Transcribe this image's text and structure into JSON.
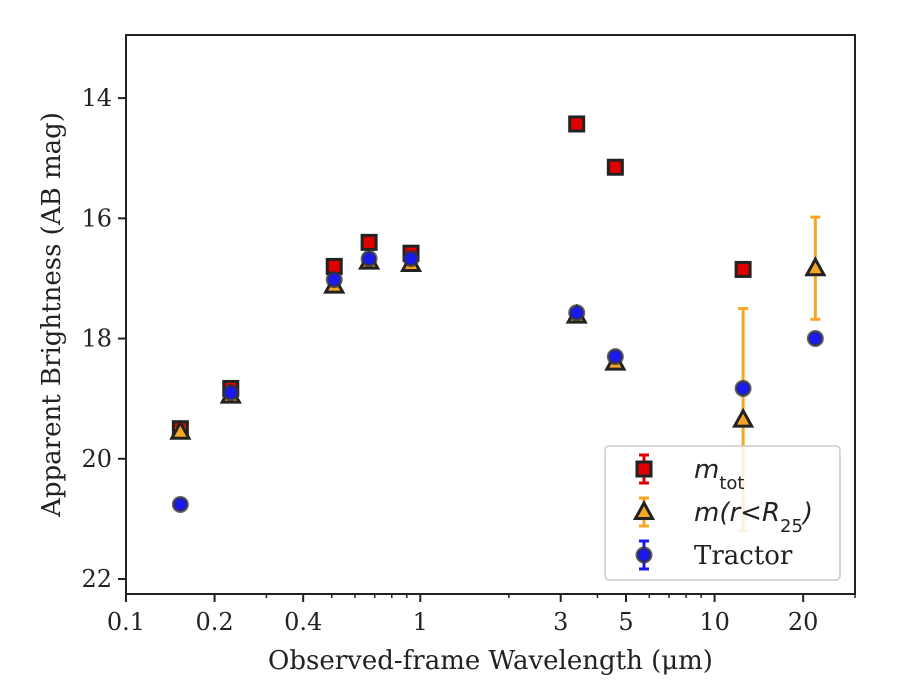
{
  "chart_data": {
    "type": "scatter",
    "xlabel": "Observed-frame Wavelength (μm)",
    "ylabel": "Apparent Brightness (AB mag)",
    "x_scale": "log",
    "xlim": [
      0.1,
      30
    ],
    "ylim": [
      22.25,
      12.95
    ],
    "y_inverted": true,
    "x_ticks": [
      0.1,
      0.2,
      0.4,
      1,
      3,
      5,
      10,
      20
    ],
    "x_tick_labels": [
      "0.1",
      "0.2",
      "0.4",
      "1",
      "3",
      "5",
      "10",
      "20"
    ],
    "y_ticks": [
      14,
      16,
      18,
      20,
      22
    ],
    "y_tick_labels": [
      "14",
      "16",
      "18",
      "20",
      "22"
    ],
    "grid": false,
    "legend_position": "bottom-right",
    "series": [
      {
        "name": "m_tot",
        "marker": "square",
        "color": "#e00000",
        "ecolor": "#e00000",
        "points": [
          {
            "x": 0.153,
            "y": 19.5,
            "err": 0.1
          },
          {
            "x": 0.227,
            "y": 18.83,
            "err": 0.1
          },
          {
            "x": 0.51,
            "y": 16.8,
            "err": 0.05
          },
          {
            "x": 0.67,
            "y": 16.4,
            "err": 0.05
          },
          {
            "x": 0.93,
            "y": 16.58,
            "err": 0.05
          },
          {
            "x": 3.4,
            "y": 14.43,
            "err": 0.05
          },
          {
            "x": 4.6,
            "y": 15.15,
            "err": 0.05
          },
          {
            "x": 12.5,
            "y": 16.85,
            "err": 0.05
          }
        ]
      },
      {
        "name": "m(r<R25)",
        "marker": "triangle",
        "color": "#f5a623",
        "ecolor": "#f5a623",
        "points": [
          {
            "x": 0.153,
            "y": 19.55,
            "err": 0.05
          },
          {
            "x": 0.227,
            "y": 18.95,
            "err": 0.05
          },
          {
            "x": 0.51,
            "y": 17.12,
            "err": 0.05
          },
          {
            "x": 0.67,
            "y": 16.72,
            "err": 0.05
          },
          {
            "x": 0.93,
            "y": 16.76,
            "err": 0.05
          },
          {
            "x": 3.4,
            "y": 17.62,
            "err": 0.05
          },
          {
            "x": 4.6,
            "y": 18.4,
            "err": 0.05
          },
          {
            "x": 12.5,
            "y": 19.35,
            "err": 1.85
          },
          {
            "x": 22.0,
            "y": 16.83,
            "err": 0.85
          }
        ]
      },
      {
        "name": "Tractor",
        "marker": "circle",
        "color": "#1a1aee",
        "ecolor": "#1a1aee",
        "points": [
          {
            "x": 0.153,
            "y": 20.76,
            "err": 0.05
          },
          {
            "x": 0.227,
            "y": 18.9,
            "err": 0.05
          },
          {
            "x": 0.51,
            "y": 17.02,
            "err": 0.05
          },
          {
            "x": 0.67,
            "y": 16.67,
            "err": 0.05
          },
          {
            "x": 0.93,
            "y": 16.67,
            "err": 0.05
          },
          {
            "x": 3.4,
            "y": 17.57,
            "err": 0.05
          },
          {
            "x": 4.6,
            "y": 18.3,
            "err": 0.05
          },
          {
            "x": 12.5,
            "y": 18.83,
            "err": 0.05
          },
          {
            "x": 22.0,
            "y": 18.0,
            "err": 0.05
          }
        ]
      }
    ],
    "legend": {
      "entries": [
        {
          "series": 0,
          "label_base": "m",
          "label_sub": "tot"
        },
        {
          "series": 1,
          "label_base": "m(r<R",
          "label_sub": "25",
          "label_tail": ")"
        },
        {
          "series": 2,
          "label_base": "Tractor"
        }
      ]
    }
  }
}
